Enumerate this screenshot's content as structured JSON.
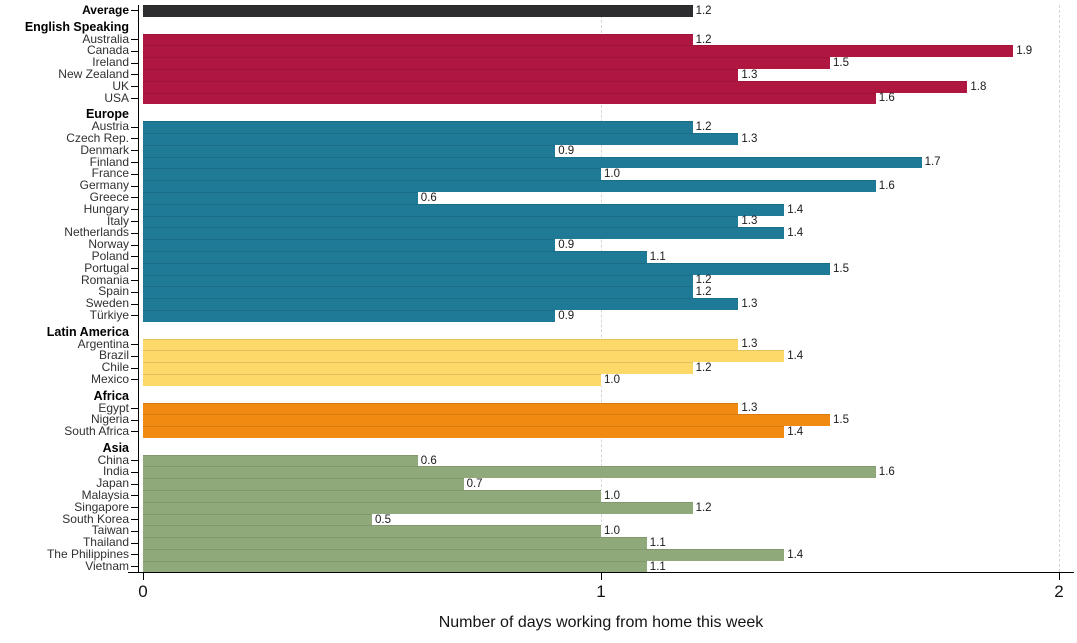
{
  "chart_data": {
    "type": "bar",
    "orientation": "horizontal",
    "title": "",
    "xlabel": "Number of days working from home this week",
    "xlim": [
      0,
      2
    ],
    "x_ticks": [
      "0",
      "1",
      "2"
    ],
    "gridlines_x": [
      1,
      2
    ],
    "legend": "none",
    "groups": [
      {
        "header": "",
        "color": "#2d2c2e",
        "items": [
          {
            "label": "Average",
            "value": 1.2,
            "display": "1.2",
            "bold": true
          }
        ]
      },
      {
        "header": "English Speaking",
        "color": "#b01740",
        "items": [
          {
            "label": "Australia",
            "value": 1.2,
            "display": "1.2"
          },
          {
            "label": "Canada",
            "value": 1.9,
            "display": "1.9"
          },
          {
            "label": "Ireland",
            "value": 1.5,
            "display": "1.5"
          },
          {
            "label": "New Zealand",
            "value": 1.3,
            "display": "1.3"
          },
          {
            "label": "UK",
            "value": 1.8,
            "display": "1.8"
          },
          {
            "label": "USA",
            "value": 1.6,
            "display": "1.6"
          }
        ]
      },
      {
        "header": "Europe",
        "color": "#1e7a96",
        "items": [
          {
            "label": "Austria",
            "value": 1.2,
            "display": "1.2"
          },
          {
            "label": "Czech Rep.",
            "value": 1.3,
            "display": "1.3"
          },
          {
            "label": "Denmark",
            "value": 0.9,
            "display": "0.9"
          },
          {
            "label": "Finland",
            "value": 1.7,
            "display": "1.7"
          },
          {
            "label": "France",
            "value": 1.0,
            "display": "1.0"
          },
          {
            "label": "Germany",
            "value": 1.6,
            "display": "1.6"
          },
          {
            "label": "Greece",
            "value": 0.6,
            "display": "0.6"
          },
          {
            "label": "Hungary",
            "value": 1.4,
            "display": "1.4"
          },
          {
            "label": "Italy",
            "value": 1.3,
            "display": "1.3"
          },
          {
            "label": "Netherlands",
            "value": 1.4,
            "display": "1.4"
          },
          {
            "label": "Norway",
            "value": 0.9,
            "display": "0.9"
          },
          {
            "label": "Poland",
            "value": 1.1,
            "display": "1.1"
          },
          {
            "label": "Portugal",
            "value": 1.5,
            "display": "1.5"
          },
          {
            "label": "Romania",
            "value": 1.2,
            "display": "1.2"
          },
          {
            "label": "Spain",
            "value": 1.2,
            "display": "1.2"
          },
          {
            "label": "Sweden",
            "value": 1.3,
            "display": "1.3"
          },
          {
            "label": "Türkiye",
            "value": 0.9,
            "display": "0.9"
          }
        ]
      },
      {
        "header": "Latin America",
        "color": "#fcd968",
        "items": [
          {
            "label": "Argentina",
            "value": 1.3,
            "display": "1.3"
          },
          {
            "label": "Brazil",
            "value": 1.4,
            "display": "1.4"
          },
          {
            "label": "Chile",
            "value": 1.2,
            "display": "1.2"
          },
          {
            "label": "Mexico",
            "value": 1.0,
            "display": "1.0"
          }
        ]
      },
      {
        "header": "Africa",
        "color": "#f08a10",
        "items": [
          {
            "label": "Egypt",
            "value": 1.3,
            "display": "1.3"
          },
          {
            "label": "Nigeria",
            "value": 1.5,
            "display": "1.5"
          },
          {
            "label": "South Africa",
            "value": 1.4,
            "display": "1.4"
          }
        ]
      },
      {
        "header": "Asia",
        "color": "#90a97b",
        "items": [
          {
            "label": "China",
            "value": 0.6,
            "display": "0.6"
          },
          {
            "label": "India",
            "value": 1.6,
            "display": "1.6"
          },
          {
            "label": "Japan",
            "value": 0.7,
            "display": "0.7"
          },
          {
            "label": "Malaysia",
            "value": 1.0,
            "display": "1.0"
          },
          {
            "label": "Singapore",
            "value": 1.2,
            "display": "1.2"
          },
          {
            "label": "South Korea",
            "value": 0.5,
            "display": "0.5"
          },
          {
            "label": "Taiwan",
            "value": 1.0,
            "display": "1.0"
          },
          {
            "label": "Thailand",
            "value": 1.1,
            "display": "1.1"
          },
          {
            "label": "The Philippines",
            "value": 1.4,
            "display": "1.4"
          },
          {
            "label": "Vietnam",
            "value": 1.1,
            "display": "1.1"
          }
        ]
      }
    ]
  },
  "axis": {
    "tick_color": "#000000",
    "grid_color": "#d5d5d5",
    "text_color": "#141414"
  }
}
